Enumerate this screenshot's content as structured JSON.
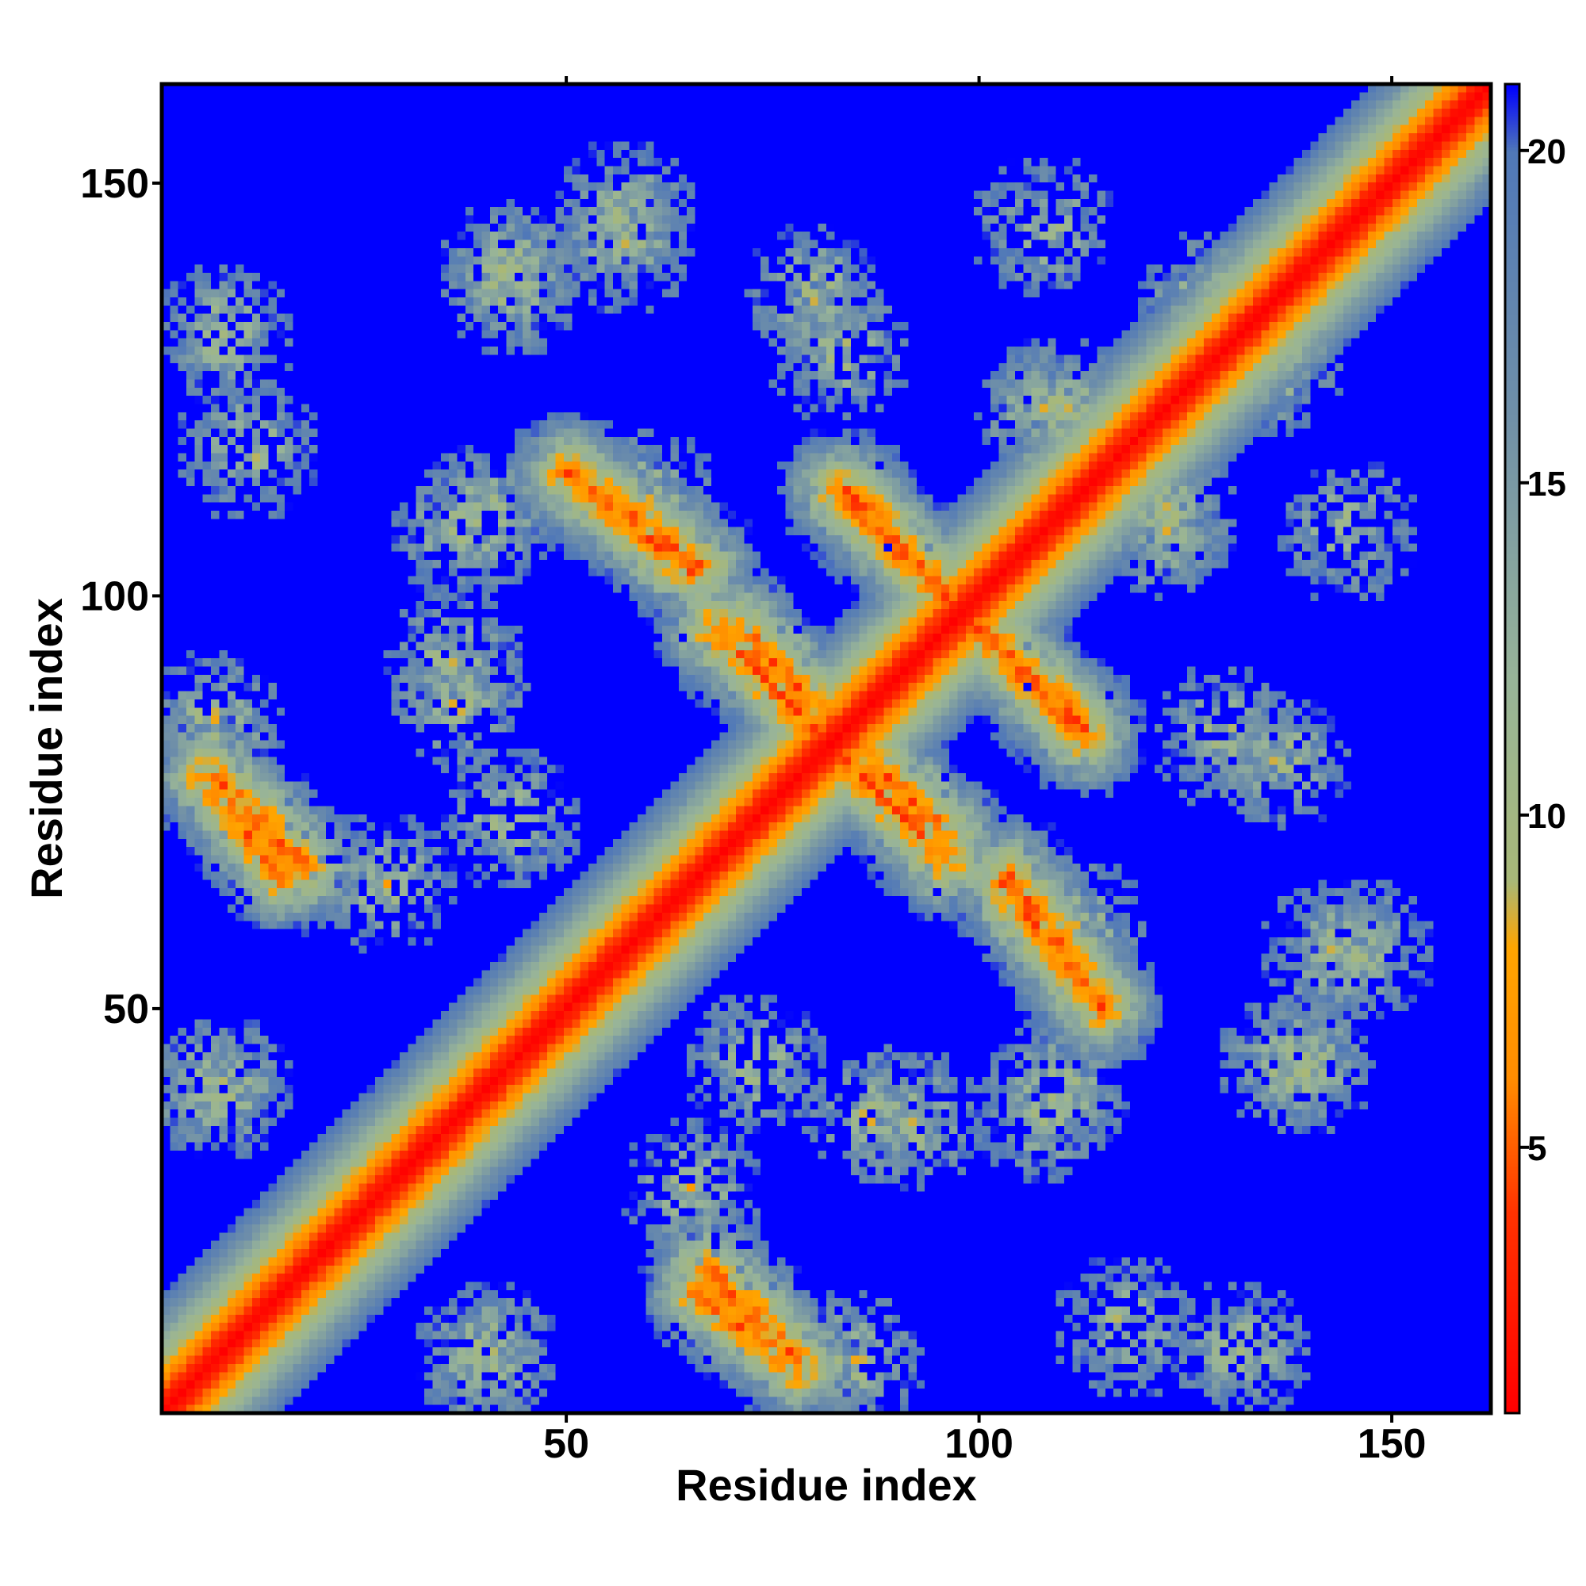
{
  "chart_data": {
    "type": "heatmap",
    "title": "",
    "xlabel": "Residue index",
    "ylabel": "Residue index",
    "xlim": [
      1,
      162
    ],
    "ylim": [
      1,
      162
    ],
    "x_ticks": [
      50,
      100,
      150
    ],
    "y_ticks": [
      50,
      100,
      150
    ],
    "x_tick_labels": [
      "50",
      "100",
      "150"
    ],
    "y_tick_labels": [
      "50",
      "100",
      "150"
    ],
    "n_residues": 162,
    "matrix": "symmetric residue-residue distance map",
    "colorbar": {
      "range": [
        1,
        21
      ],
      "ticks": [
        5,
        10,
        15,
        20
      ],
      "tick_labels": [
        "5",
        "10",
        "15",
        "20"
      ],
      "stops": [
        {
          "value": 1,
          "color": "#ff0000"
        },
        {
          "value": 4,
          "color": "#ff3300"
        },
        {
          "value": 6,
          "color": "#ff8c00"
        },
        {
          "value": 8,
          "color": "#ffa500"
        },
        {
          "value": 9,
          "color": "#a8b878"
        },
        {
          "value": 12,
          "color": "#98b498"
        },
        {
          "value": 16,
          "color": "#7090a8"
        },
        {
          "value": 20,
          "color": "#5078b8"
        },
        {
          "value": 21,
          "color": "#0000ff"
        }
      ],
      "background_color": "#0000ff"
    },
    "features": [
      {
        "kind": "main-diagonal",
        "from": [
          1,
          1
        ],
        "to": [
          162,
          162
        ]
      },
      {
        "kind": "anti-diagonal-band",
        "from": [
          50,
          115
        ],
        "to": [
          65,
          103
        ]
      },
      {
        "kind": "anti-diagonal-band",
        "from": [
          68,
          96
        ],
        "to": [
          86,
          78
        ]
      },
      {
        "kind": "anti-diagonal-band",
        "from": [
          83,
          113
        ],
        "to": [
          97,
          99
        ]
      },
      {
        "kind": "anti-diagonal-band",
        "from": [
          98,
          98
        ],
        "to": [
          113,
          84
        ]
      },
      {
        "kind": "anti-diagonal-band",
        "from": [
          85,
          82
        ],
        "to": [
          96,
          71
        ]
      },
      {
        "kind": "anti-diagonal-band",
        "from": [
          104,
          66
        ],
        "to": [
          115,
          50
        ]
      },
      {
        "kind": "anti-diagonal-band",
        "from": [
          7,
          78
        ],
        "to": [
          18,
          67
        ]
      },
      {
        "kind": "anti-diagonal-band",
        "from": [
          66,
          15
        ],
        "to": [
          78,
          6
        ]
      },
      {
        "kind": "cluster",
        "center": [
          80,
          137
        ]
      },
      {
        "kind": "cluster",
        "center": [
          130,
          83
        ]
      },
      {
        "kind": "cluster",
        "center": [
          122,
          108
        ]
      },
      {
        "kind": "cluster",
        "center": [
          36,
          92
        ]
      },
      {
        "kind": "cluster",
        "center": [
          40,
          110
        ]
      },
      {
        "kind": "cluster",
        "center": [
          43,
          73
        ]
      },
      {
        "kind": "cluster",
        "center": [
          11,
          118
        ]
      },
      {
        "kind": "cluster",
        "center": [
          6,
          40
        ]
      },
      {
        "kind": "cluster",
        "center": [
          40,
          8
        ]
      },
      {
        "kind": "cluster",
        "center": [
          85,
          7
        ]
      },
      {
        "kind": "cluster",
        "center": [
          87,
          37
        ]
      },
      {
        "kind": "cluster",
        "center": [
          108,
          37
        ]
      },
      {
        "kind": "cluster",
        "center": [
          65,
          28
        ]
      },
      {
        "kind": "cluster",
        "center": [
          57,
          147
        ]
      },
      {
        "kind": "cluster",
        "center": [
          108,
          145
        ]
      },
      {
        "kind": "cluster",
        "center": [
          43,
          140
        ]
      },
      {
        "kind": "cluster",
        "center": [
          60,
          112
        ]
      },
      {
        "kind": "cluster",
        "center": [
          138,
          43
        ]
      },
      {
        "kind": "cluster",
        "center": [
          143,
          57
        ]
      },
      {
        "kind": "cluster",
        "center": [
          132,
          8
        ]
      },
      {
        "kind": "cluster",
        "center": [
          136,
          128
        ]
      },
      {
        "kind": "cluster",
        "center": [
          110,
          123
        ]
      }
    ]
  }
}
